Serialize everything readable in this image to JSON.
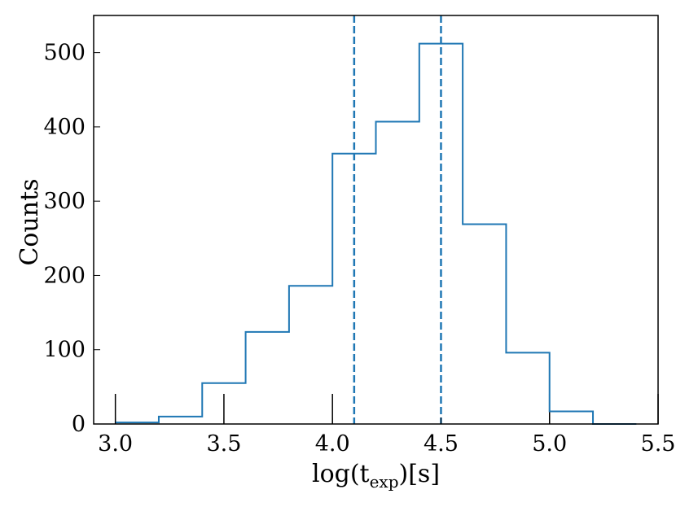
{
  "chart_data": {
    "type": "histogram",
    "xlabel": "log(t_exp)[s]",
    "xlabel_main": "log(t",
    "xlabel_sub": "exp",
    "xlabel_tail": ")[s]",
    "ylabel": "Counts",
    "xlim": [
      2.9,
      5.5
    ],
    "ylim": [
      0,
      550
    ],
    "x_ticks": [
      "3.0",
      "3.5",
      "4.0",
      "4.5",
      "5.0",
      "5.5"
    ],
    "y_ticks": [
      "0",
      "100",
      "200",
      "300",
      "400",
      "500"
    ],
    "bin_edges": [
      3.0,
      3.2,
      3.4,
      3.6,
      3.8,
      4.0,
      4.2,
      4.4,
      4.6,
      4.8,
      5.0,
      5.2,
      5.4
    ],
    "counts": [
      2,
      10,
      55,
      124,
      186,
      364,
      407,
      512,
      269,
      96,
      17,
      0
    ],
    "vlines": [
      4.1,
      4.5
    ],
    "series_color": "#1f77b4",
    "vline_color": "#1f77b4",
    "rug_x": [
      3.0,
      3.5,
      4.0,
      5.0,
      5.5
    ],
    "grid": false
  }
}
